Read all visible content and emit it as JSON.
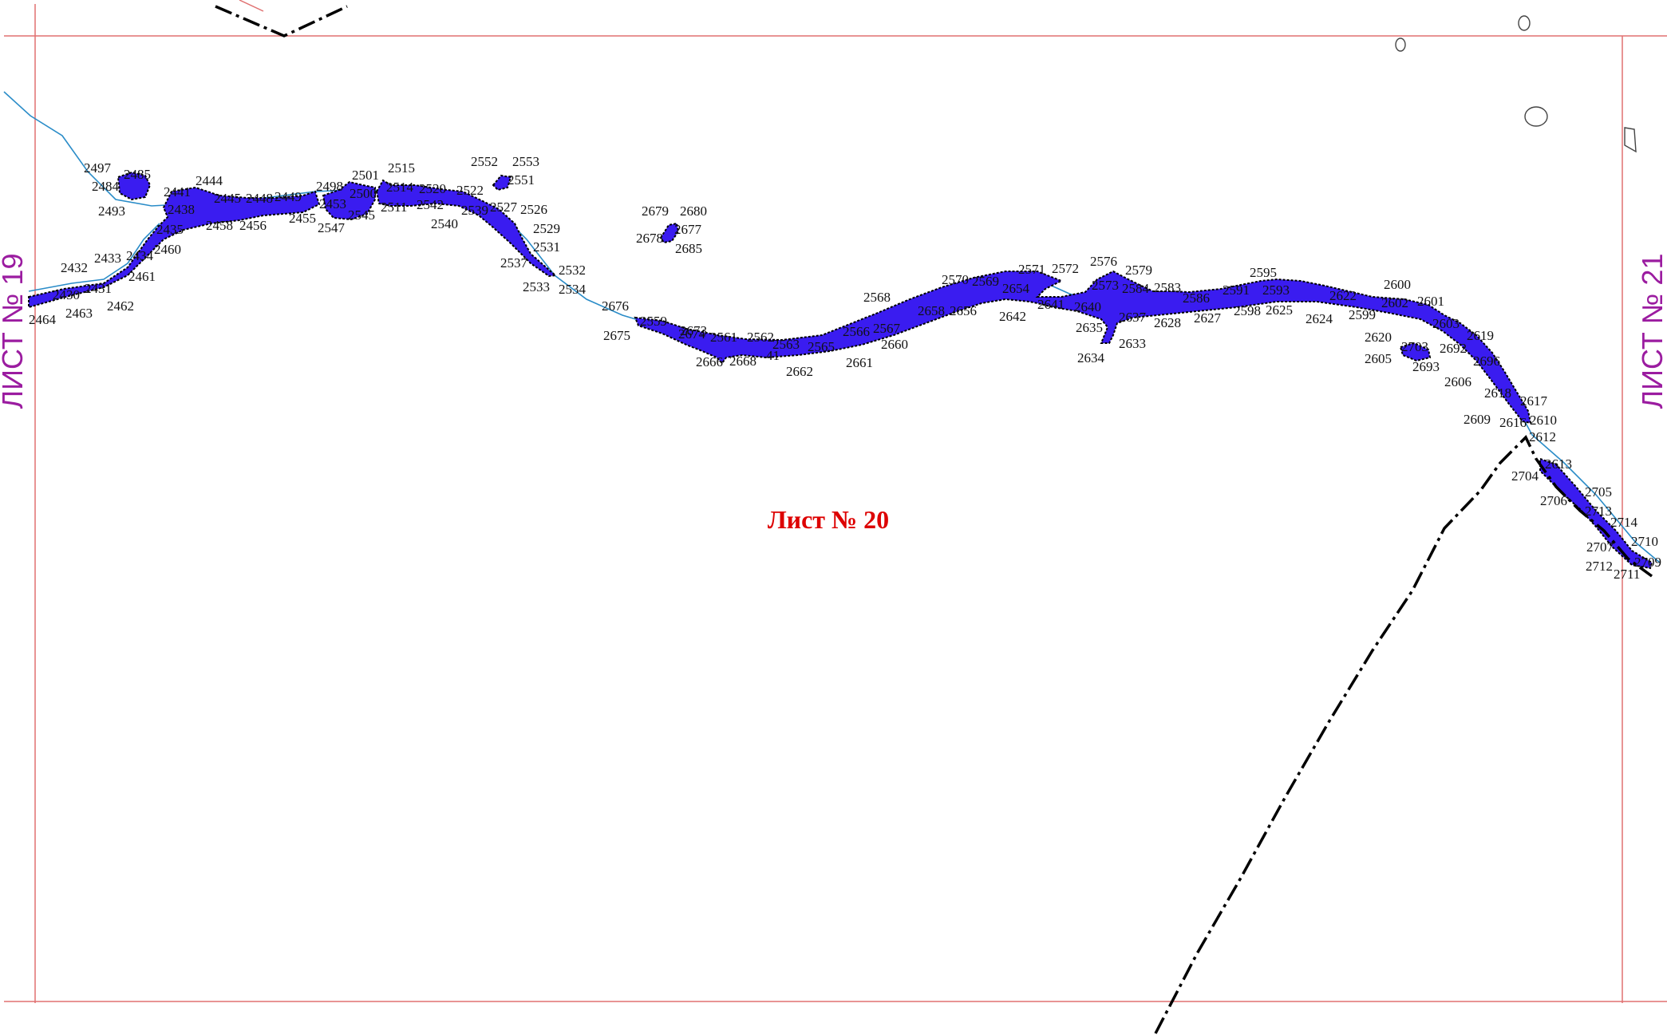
{
  "sheet": {
    "title": "Лист № 20",
    "left_neighbor": "ЛИСТ № 19",
    "right_neighbor": "ЛИСТ № 21"
  },
  "colors": {
    "frame": "#e07070",
    "water_fill": "#3a1cf0",
    "water_edge": "#000000",
    "stream": "#2a8cc8",
    "title": "#dd0000",
    "side_label": "#9b1ca0",
    "boundary": "#000000"
  },
  "point_labels": [
    "2497",
    "2485",
    "2484",
    "2493",
    "2444",
    "2441",
    "2445",
    "2448",
    "2449",
    "2438",
    "2458",
    "2456",
    "2435",
    "2460",
    "2432",
    "2433",
    "2434",
    "2461",
    "2430",
    "2431",
    "2464",
    "2463",
    "2462",
    "2498",
    "2501",
    "2515",
    "2500",
    "2514",
    "2520",
    "2522",
    "2453",
    "2545",
    "2511",
    "2542",
    "2455",
    "2547",
    "2540",
    "2552",
    "2553",
    "2551",
    "2539",
    "2532",
    "2526",
    "2527",
    "2529",
    "2531",
    "2537",
    "2533",
    "2534",
    "2679",
    "2680",
    "2678",
    "2677",
    "2685",
    "2676",
    "2559",
    "2675",
    "2674",
    "2673",
    "2561",
    "2562",
    "2563",
    "2565",
    "2566",
    "2567",
    "2568",
    "2666",
    "2668",
    "41",
    "2662",
    "2661",
    "2660",
    "2658",
    "2656",
    "2570",
    "2569",
    "2654",
    "2571",
    "2572",
    "2576",
    "2579",
    "2573",
    "2584",
    "2583",
    "2641",
    "2640",
    "2642",
    "2637",
    "2628",
    "2586",
    "2635",
    "2633",
    "2634",
    "2627",
    "2591",
    "2593",
    "2595",
    "2598",
    "2625",
    "2624",
    "2622",
    "2599",
    "2600",
    "2602",
    "2601",
    "2603",
    "2620",
    "2703",
    "2692",
    "2619",
    "2605",
    "2693",
    "2696",
    "2606",
    "2618",
    "2617",
    "2609",
    "2616",
    "2610",
    "2612",
    "2613",
    "2704",
    "2705",
    "2706",
    "2713",
    "2714",
    "2707",
    "2710",
    "2709",
    "2712",
    "2711"
  ]
}
